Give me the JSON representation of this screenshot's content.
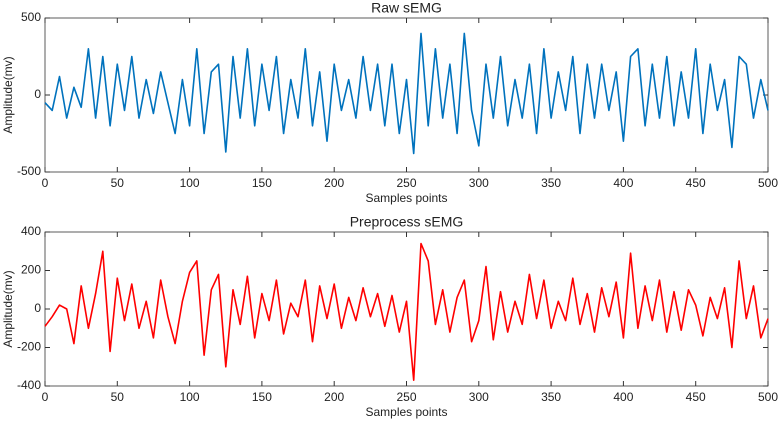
{
  "chart_data": [
    {
      "type": "line",
      "title": "Raw sEMG",
      "xlabel": "Samples points",
      "ylabel": "Amplitude(mv)",
      "xlim": [
        0,
        500
      ],
      "xticks": [
        0,
        50,
        100,
        150,
        200,
        250,
        300,
        350,
        400,
        450,
        500
      ],
      "ylim": [
        -500,
        500
      ],
      "yticks": [
        -500,
        0,
        500
      ],
      "series": [
        {
          "name": "Raw sEMG",
          "color": "#0072bd",
          "x": [
            0,
            5,
            10,
            15,
            20,
            25,
            30,
            35,
            40,
            45,
            50,
            55,
            60,
            65,
            70,
            75,
            80,
            85,
            90,
            95,
            100,
            105,
            110,
            115,
            120,
            125,
            130,
            135,
            140,
            145,
            150,
            155,
            160,
            165,
            170,
            175,
            180,
            185,
            190,
            195,
            200,
            205,
            210,
            215,
            220,
            225,
            230,
            235,
            240,
            245,
            250,
            255,
            260,
            265,
            270,
            275,
            280,
            285,
            290,
            295,
            300,
            305,
            310,
            315,
            320,
            325,
            330,
            335,
            340,
            345,
            350,
            355,
            360,
            365,
            370,
            375,
            380,
            385,
            390,
            395,
            400,
            405,
            410,
            415,
            420,
            425,
            430,
            435,
            440,
            445,
            450,
            455,
            460,
            465,
            470,
            475,
            480,
            485,
            490,
            495,
            500
          ],
          "values": [
            -50,
            -100,
            120,
            -150,
            50,
            -80,
            300,
            -150,
            250,
            -200,
            200,
            -100,
            250,
            -150,
            100,
            -120,
            150,
            -50,
            -250,
            100,
            -200,
            300,
            -250,
            150,
            200,
            -370,
            250,
            -150,
            300,
            -200,
            200,
            -100,
            250,
            -250,
            100,
            -150,
            300,
            -200,
            150,
            -300,
            200,
            -100,
            100,
            -150,
            250,
            -100,
            200,
            -200,
            200,
            -250,
            100,
            -380,
            400,
            -200,
            300,
            -150,
            200,
            -250,
            400,
            -100,
            -330,
            200,
            -150,
            250,
            -200,
            100,
            -150,
            200,
            -250,
            300,
            -150,
            150,
            -100,
            250,
            -250,
            200,
            -150,
            200,
            -100,
            150,
            -300,
            250,
            300,
            -200,
            200,
            -150,
            250,
            -200,
            150,
            -150,
            300,
            -250,
            200,
            -100,
            100,
            -340,
            250,
            200,
            -150,
            100,
            -100
          ]
        }
      ]
    },
    {
      "type": "line",
      "title": "Preprocess sEMG",
      "xlabel": "Samples points",
      "ylabel": "Amplitude(mv)",
      "xlim": [
        0,
        500
      ],
      "xticks": [
        0,
        50,
        100,
        150,
        200,
        250,
        300,
        350,
        400,
        450,
        500
      ],
      "ylim": [
        -400,
        400
      ],
      "yticks": [
        -400,
        -200,
        0,
        200,
        400
      ],
      "series": [
        {
          "name": "Preprocess sEMG",
          "color": "#ff0000",
          "x": [
            0,
            5,
            10,
            15,
            20,
            25,
            30,
            35,
            40,
            45,
            50,
            55,
            60,
            65,
            70,
            75,
            80,
            85,
            90,
            95,
            100,
            105,
            110,
            115,
            120,
            125,
            130,
            135,
            140,
            145,
            150,
            155,
            160,
            165,
            170,
            175,
            180,
            185,
            190,
            195,
            200,
            205,
            210,
            215,
            220,
            225,
            230,
            235,
            240,
            245,
            250,
            255,
            260,
            265,
            270,
            275,
            280,
            285,
            290,
            295,
            300,
            305,
            310,
            315,
            320,
            325,
            330,
            335,
            340,
            345,
            350,
            355,
            360,
            365,
            370,
            375,
            380,
            385,
            390,
            395,
            400,
            405,
            410,
            415,
            420,
            425,
            430,
            435,
            440,
            445,
            450,
            455,
            460,
            465,
            470,
            475,
            480,
            485,
            490,
            495,
            500
          ],
          "values": [
            -90,
            -40,
            20,
            0,
            -180,
            120,
            -100,
            80,
            300,
            -220,
            160,
            -60,
            130,
            -100,
            40,
            -150,
            150,
            -40,
            -180,
            40,
            190,
            250,
            -240,
            100,
            180,
            -300,
            100,
            -80,
            170,
            -150,
            80,
            -60,
            150,
            -130,
            30,
            -40,
            150,
            -170,
            120,
            -50,
            130,
            -100,
            60,
            -60,
            110,
            -40,
            80,
            -90,
            70,
            -120,
            40,
            -370,
            340,
            250,
            -80,
            100,
            -120,
            60,
            150,
            -170,
            -60,
            220,
            -160,
            90,
            -120,
            40,
            -80,
            180,
            -50,
            150,
            -100,
            40,
            -60,
            160,
            -80,
            80,
            -120,
            110,
            -40,
            140,
            -150,
            290,
            -100,
            120,
            -60,
            150,
            -120,
            90,
            -110,
            100,
            20,
            -140,
            60,
            -50,
            110,
            -200,
            250,
            -50,
            120,
            -150,
            -50
          ]
        }
      ]
    }
  ]
}
